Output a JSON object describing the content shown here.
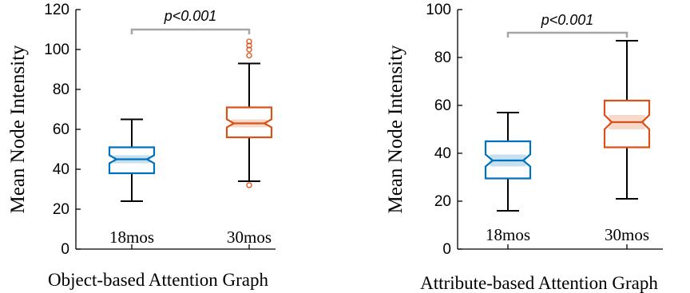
{
  "chart_data": [
    {
      "type": "box",
      "xlabel": "Object-based Attention Graph",
      "ylabel": "Mean Node Intensity",
      "ylim": [
        0,
        120
      ],
      "yticks": [
        0,
        20,
        40,
        60,
        80,
        100,
        120
      ],
      "categories": [
        "18mos",
        "30mos"
      ],
      "annotation": "p<0.001",
      "boxes": [
        {
          "category": "18mos",
          "color": "#0072BD",
          "whisker_low": 24,
          "q1": 38,
          "median": 45,
          "q3": 51,
          "whisker_high": 65,
          "notch_low": 43,
          "notch_high": 47,
          "outliers": []
        },
        {
          "category": "30mos",
          "color": "#D95319",
          "whisker_low": 34,
          "q1": 56,
          "median": 63,
          "q3": 71,
          "whisker_high": 93,
          "notch_low": 61,
          "notch_high": 65,
          "outliers": [
            32,
            97,
            100,
            102,
            104
          ]
        }
      ]
    },
    {
      "type": "box",
      "xlabel": "Attribute-based Attention Graph",
      "ylabel": "Mean Node Intensity",
      "ylim": [
        0,
        100
      ],
      "yticks": [
        0,
        20,
        40,
        60,
        80,
        100
      ],
      "categories": [
        "18mos",
        "30mos"
      ],
      "annotation": "p<0.001",
      "boxes": [
        {
          "category": "18mos",
          "color": "#0072BD",
          "whisker_low": 16,
          "q1": 29.5,
          "median": 37,
          "q3": 45,
          "whisker_high": 57,
          "notch_low": 34.5,
          "notch_high": 39.5,
          "outliers": []
        },
        {
          "category": "30mos",
          "color": "#D95319",
          "whisker_low": 21,
          "q1": 42.5,
          "median": 53,
          "q3": 62,
          "whisker_high": 87,
          "notch_low": 50,
          "notch_high": 56,
          "outliers": []
        }
      ]
    }
  ]
}
